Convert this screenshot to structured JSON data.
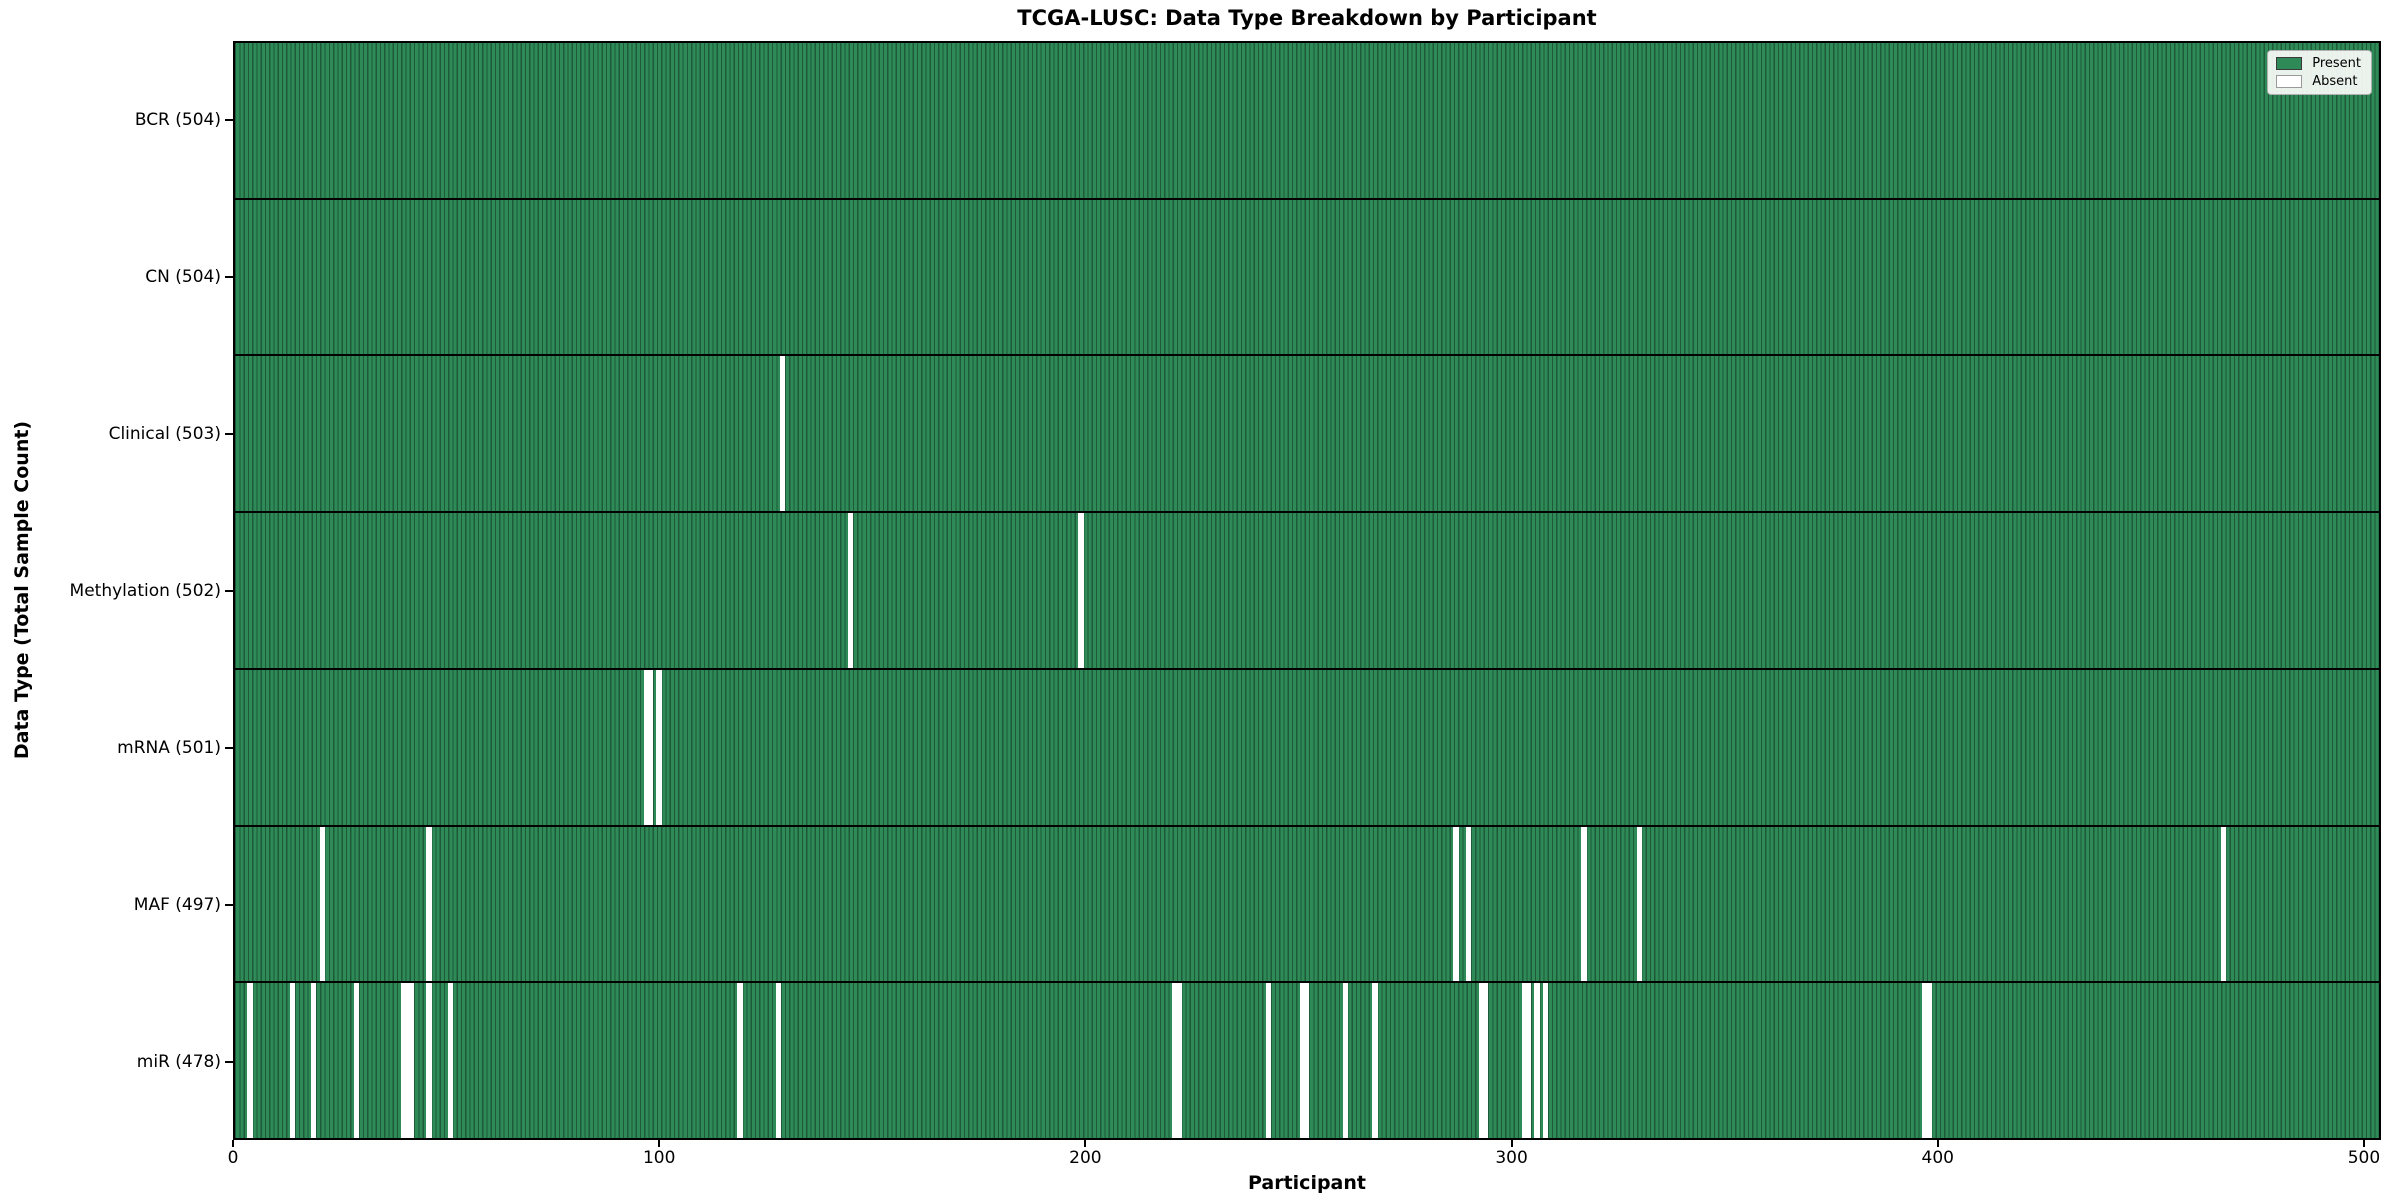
{
  "chart_data": {
    "type": "heatmap",
    "title": "TCGA-LUSC: Data Type Breakdown by Participant",
    "xlabel": "Participant",
    "ylabel": "Data Type (Total Sample Count)",
    "x_range": [
      0,
      504
    ],
    "x_ticks": [
      0,
      100,
      200,
      300,
      400,
      500
    ],
    "n_participants": 504,
    "grid": false,
    "legend_position": "upper right",
    "legend": [
      {
        "label": "Present",
        "color": "#2e8b57",
        "border": "#3a3a3a"
      },
      {
        "label": "Absent",
        "color": "#ffffff",
        "border": "#9a9a9a"
      }
    ],
    "colors": {
      "present": "#2e8b57",
      "bar_edge": "#1e5a3a",
      "absent": "#ffffff",
      "separator": "#000000"
    },
    "rows": [
      {
        "name": "BCR",
        "total": 504,
        "label": "BCR (504)",
        "absent": []
      },
      {
        "name": "CN",
        "total": 504,
        "label": "CN (504)",
        "absent": []
      },
      {
        "name": "Clinical",
        "total": 503,
        "label": "Clinical (503)",
        "absent": [
          128
        ]
      },
      {
        "name": "Methylation",
        "total": 502,
        "label": "Methylation (502)",
        "absent": [
          144,
          198
        ]
      },
      {
        "name": "mRNA",
        "total": 501,
        "label": "mRNA (501)",
        "absent": [
          96,
          97,
          99
        ]
      },
      {
        "name": "MAF",
        "total": 497,
        "label": "MAF (497)",
        "absent": [
          20,
          45,
          286,
          289,
          316,
          329,
          466
        ]
      },
      {
        "name": "miR",
        "total": 478,
        "label": "miR (478)",
        "absent": [
          3,
          13,
          18,
          28,
          39,
          40,
          41,
          45,
          50,
          118,
          127,
          220,
          221,
          242,
          250,
          251,
          260,
          267,
          292,
          293,
          302,
          303,
          305,
          307,
          396,
          397
        ]
      }
    ]
  }
}
